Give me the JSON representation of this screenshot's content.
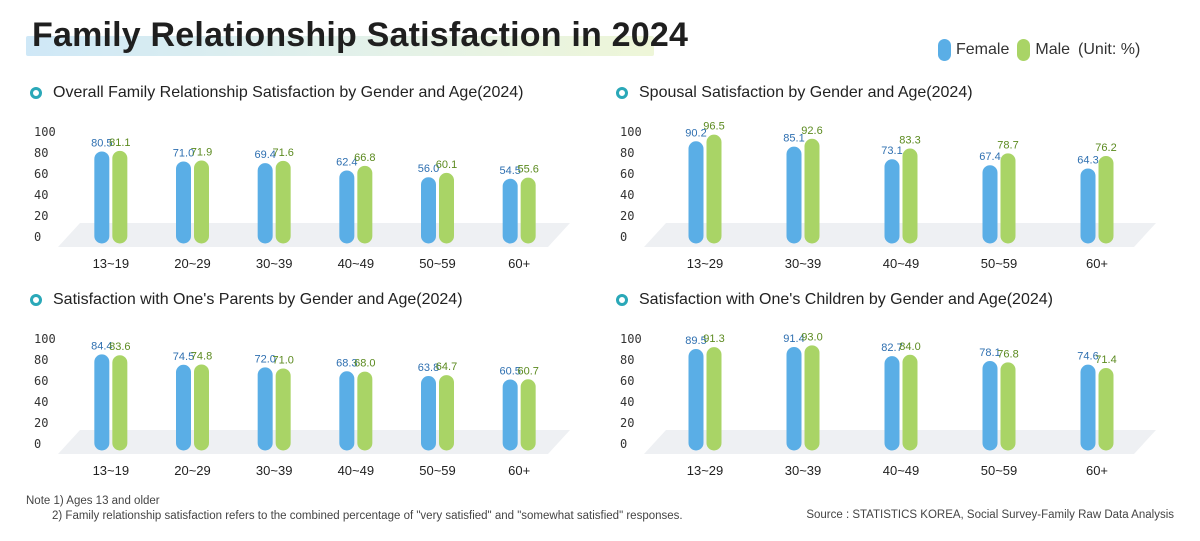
{
  "title": "Family Relationship Satisfaction in 2024",
  "legend": {
    "female": "Female",
    "male": "Male",
    "unit": "(Unit: %)"
  },
  "colors": {
    "female": "#5aaee6",
    "male": "#a9d466",
    "female_label": "#2e6fb0",
    "male_label": "#5b8a1f",
    "title_ring": "#2aa8b8"
  },
  "chart_data": [
    {
      "type": "bar",
      "title": "Overall Family Relationship Satisfaction by Gender and Age(2024)",
      "categories": [
        "13~19",
        "20~29",
        "30~39",
        "40~49",
        "50~59",
        "60+"
      ],
      "series": [
        {
          "name": "Female",
          "values": [
            80.5,
            71.0,
            69.4,
            62.4,
            56.0,
            54.5
          ]
        },
        {
          "name": "Male",
          "values": [
            81.1,
            71.9,
            71.6,
            66.8,
            60.1,
            55.6
          ]
        }
      ],
      "value_labels": {
        "Female": [
          "80.5",
          "71.0",
          "69.4",
          "62.4",
          "56.0",
          "54.5"
        ],
        "Male": [
          "81.1",
          "71.9",
          "71.6",
          "66.8",
          "60.1",
          "55.6"
        ]
      },
      "yticks": [
        "0",
        "20",
        "40",
        "60",
        "80",
        "100"
      ],
      "ylim": [
        0,
        100
      ]
    },
    {
      "type": "bar",
      "title": "Spousal Satisfaction by Gender and Age(2024)",
      "categories": [
        "13~29",
        "30~39",
        "40~49",
        "50~59",
        "60+"
      ],
      "series": [
        {
          "name": "Female",
          "values": [
            90.2,
            85.1,
            73.1,
            67.4,
            64.3
          ]
        },
        {
          "name": "Male",
          "values": [
            96.5,
            92.6,
            83.3,
            78.7,
            76.2
          ]
        }
      ],
      "value_labels": {
        "Female": [
          "90.2",
          "85.1",
          "73.1",
          "67.4",
          "64.3"
        ],
        "Male": [
          "96.5",
          "92.6",
          "83.3",
          "78.7",
          "76.2"
        ]
      },
      "yticks": [
        "0",
        "20",
        "40",
        "60",
        "80",
        "100"
      ],
      "ylim": [
        0,
        100
      ]
    },
    {
      "type": "bar",
      "title": "Satisfaction with One's Parents by Gender and Age(2024)",
      "categories": [
        "13~19",
        "20~29",
        "30~39",
        "40~49",
        "50~59",
        "60+"
      ],
      "series": [
        {
          "name": "Female",
          "values": [
            84.4,
            74.5,
            72.0,
            68.3,
            63.8,
            60.5
          ]
        },
        {
          "name": "Male",
          "values": [
            83.6,
            74.8,
            71.0,
            68.0,
            64.7,
            60.7
          ]
        }
      ],
      "value_labels": {
        "Female": [
          "84.4",
          "74.5",
          "72.0",
          "68.3",
          "63.8",
          "60.5"
        ],
        "Male": [
          "83.6",
          "74.8",
          "71.0",
          "68.0",
          "64.7",
          "60.7"
        ]
      },
      "yticks": [
        "0",
        "20",
        "40",
        "60",
        "80",
        "100"
      ],
      "ylim": [
        0,
        100
      ]
    },
    {
      "type": "bar",
      "title": "Satisfaction with One's Children by Gender and Age(2024)",
      "categories": [
        "13~29",
        "30~39",
        "40~49",
        "50~59",
        "60+"
      ],
      "series": [
        {
          "name": "Female",
          "values": [
            89.5,
            91.4,
            82.7,
            78.1,
            74.6
          ]
        },
        {
          "name": "Male",
          "values": [
            91.3,
            93.0,
            84.0,
            76.8,
            71.4
          ]
        }
      ],
      "value_labels": {
        "Female": [
          "89.5",
          "91.4",
          "82.7",
          "78.1",
          "74.6"
        ],
        "Male": [
          "91.3",
          "93.0",
          "84.0",
          "76.8",
          "71.4"
        ]
      },
      "yticks": [
        "0",
        "20",
        "40",
        "60",
        "80",
        "100"
      ],
      "ylim": [
        0,
        100
      ]
    }
  ],
  "notes": {
    "note1": "Note 1) Ages 13 and older",
    "note2": "2) Family relationship satisfaction refers to the combined percentage of \"very satisfied\" and \"somewhat satisfied\" responses."
  },
  "source": "Source : STATISTICS KOREA, Social Survey-Family Raw Data Analysis"
}
